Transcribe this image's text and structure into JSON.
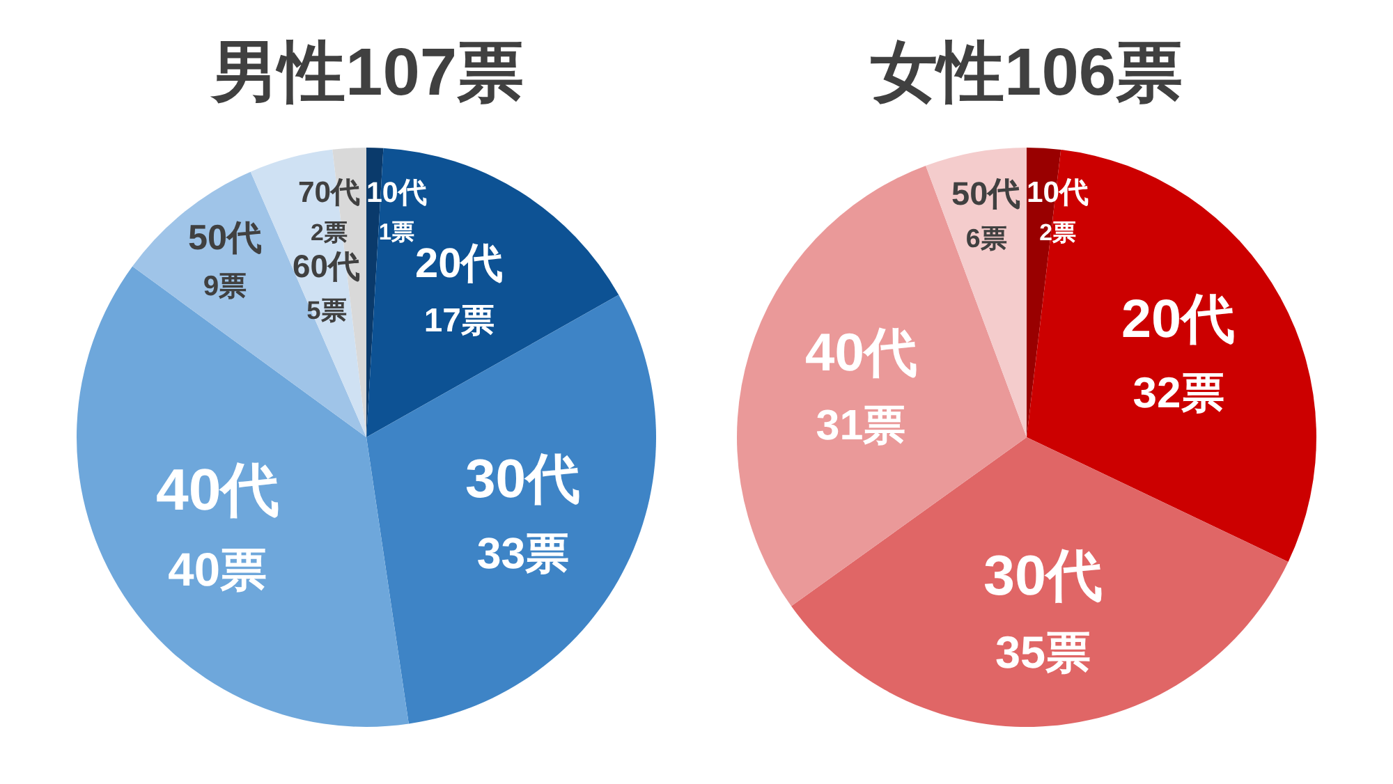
{
  "chart_data": [
    {
      "type": "pie",
      "title": "男性107票",
      "categories": [
        "10代",
        "20代",
        "30代",
        "40代",
        "50代",
        "60代",
        "70代"
      ],
      "values": [
        1,
        17,
        33,
        40,
        9,
        5,
        2
      ],
      "value_labels": [
        "1票",
        "17票",
        "33票",
        "40票",
        "9票",
        "5票",
        "2票"
      ],
      "colors": [
        "#0a3a6b",
        "#0d5294",
        "#3e84c6",
        "#6ea7db",
        "#9fc4e8",
        "#cfe1f3",
        "#d9d9d9"
      ]
    },
    {
      "type": "pie",
      "title": "女性106票",
      "categories": [
        "10代",
        "20代",
        "30代",
        "40代",
        "50代"
      ],
      "values": [
        2,
        32,
        35,
        31,
        6
      ],
      "value_labels": [
        "2票",
        "32票",
        "35票",
        "31票",
        "6票"
      ],
      "colors": [
        "#990000",
        "#cc0000",
        "#e06666",
        "#ea9999",
        "#f4cccc"
      ]
    }
  ]
}
